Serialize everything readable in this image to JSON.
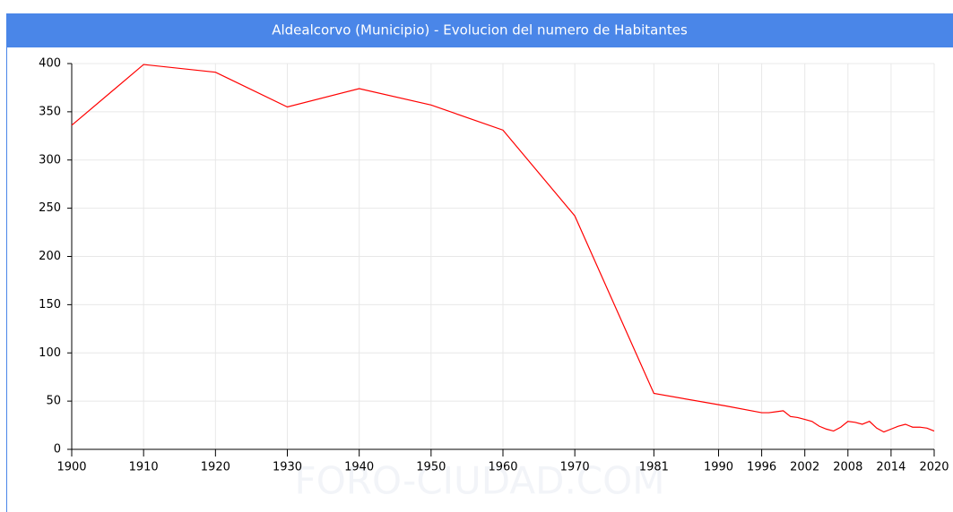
{
  "chart_data": {
    "type": "line",
    "title": "Aldealcorvo (Municipio) - Evolucion del numero de Habitantes",
    "watermark": "FORO-CIUDAD.COM",
    "x": [
      1900,
      1910,
      1920,
      1930,
      1940,
      1950,
      1960,
      1970,
      1981,
      1991,
      1996,
      1997,
      1998,
      1999,
      2000,
      2001,
      2002,
      2003,
      2004,
      2005,
      2006,
      2007,
      2008,
      2009,
      2010,
      2011,
      2012,
      2013,
      2014,
      2015,
      2016,
      2017,
      2018,
      2019,
      2020
    ],
    "series": [
      {
        "name": "Habitantes",
        "color": "#ff0000",
        "values": [
          336,
          399,
          391,
          355,
          374,
          357,
          331,
          242,
          58,
          45,
          38,
          38,
          39,
          40,
          34,
          33,
          31,
          29,
          24,
          21,
          19,
          23,
          29,
          28,
          26,
          29,
          22,
          18,
          21,
          24,
          26,
          23,
          23,
          22,
          19
        ]
      }
    ],
    "xlim": [
      1900,
      2020
    ],
    "xticks": [
      1900,
      1910,
      1920,
      1930,
      1940,
      1950,
      1960,
      1970,
      1981,
      1990,
      1996,
      2002,
      2008,
      2014,
      2020
    ],
    "ylim": [
      0,
      400
    ],
    "yticks": [
      0,
      50,
      100,
      150,
      200,
      250,
      300,
      350,
      400
    ],
    "grid": true
  }
}
